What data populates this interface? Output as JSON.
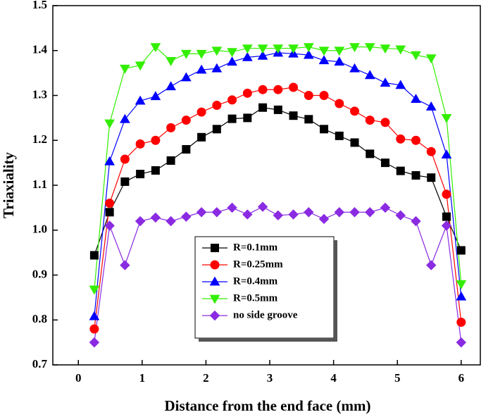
{
  "chart_data": {
    "type": "line",
    "x_label": "Distance from the end face (mm)",
    "y_label": "Triaxiality",
    "x": [
      0.25,
      0.49,
      0.73,
      0.97,
      1.21,
      1.45,
      1.69,
      1.93,
      2.17,
      2.41,
      2.65,
      2.89,
      3.13,
      3.37,
      3.61,
      3.85,
      4.09,
      4.33,
      4.57,
      4.81,
      5.05,
      5.29,
      5.53,
      5.77,
      6.0
    ],
    "series": [
      {
        "name": "R=0.1mm",
        "color": "#000000",
        "marker": "square",
        "values": [
          0.944,
          1.04,
          1.108,
          1.125,
          1.133,
          1.155,
          1.18,
          1.207,
          1.225,
          1.248,
          1.25,
          1.273,
          1.268,
          1.255,
          1.247,
          1.225,
          1.21,
          1.195,
          1.17,
          1.15,
          1.132,
          1.122,
          1.117,
          1.03,
          0.955
        ]
      },
      {
        "name": "R=0.25mm",
        "color": "#ff0000",
        "marker": "circle",
        "values": [
          0.78,
          1.06,
          1.158,
          1.192,
          1.2,
          1.228,
          1.245,
          1.263,
          1.278,
          1.29,
          1.305,
          1.313,
          1.313,
          1.318,
          1.3,
          1.3,
          1.282,
          1.265,
          1.245,
          1.24,
          1.203,
          1.2,
          1.175,
          1.08,
          0.795
        ]
      },
      {
        "name": "R=0.4mm",
        "color": "#0000ff",
        "marker": "triangle-up",
        "values": [
          0.808,
          1.153,
          1.247,
          1.288,
          1.298,
          1.32,
          1.34,
          1.357,
          1.36,
          1.375,
          1.385,
          1.388,
          1.395,
          1.393,
          1.39,
          1.378,
          1.375,
          1.36,
          1.345,
          1.328,
          1.323,
          1.292,
          1.275,
          1.168,
          0.852
        ]
      },
      {
        "name": "R=0.5mm",
        "color": "#33ee00",
        "marker": "triangle-down",
        "values": [
          0.868,
          1.238,
          1.36,
          1.367,
          1.408,
          1.377,
          1.393,
          1.393,
          1.4,
          1.397,
          1.405,
          1.405,
          1.405,
          1.405,
          1.408,
          1.4,
          1.4,
          1.408,
          1.408,
          1.405,
          1.403,
          1.39,
          1.383,
          1.25,
          0.88
        ]
      },
      {
        "name": "no side groove",
        "color": "#8a2be2",
        "marker": "diamond",
        "values": [
          0.75,
          1.01,
          0.922,
          1.02,
          1.028,
          1.02,
          1.03,
          1.04,
          1.04,
          1.05,
          1.035,
          1.052,
          1.033,
          1.035,
          1.04,
          1.025,
          1.04,
          1.04,
          1.04,
          1.05,
          1.033,
          1.02,
          0.922,
          1.01,
          0.75
        ]
      }
    ],
    "xlim": [
      -0.4,
      6.3
    ],
    "xticks": [
      0,
      1,
      2,
      3,
      4,
      5,
      6
    ],
    "ylim": [
      0.7,
      1.5
    ],
    "yticks": [
      0.7,
      0.8,
      0.9,
      {
        "value": 1,
        "label": "1.0"
      },
      1.1,
      1.2,
      1.3,
      1.4,
      1.5
    ],
    "legend": "lower center"
  }
}
